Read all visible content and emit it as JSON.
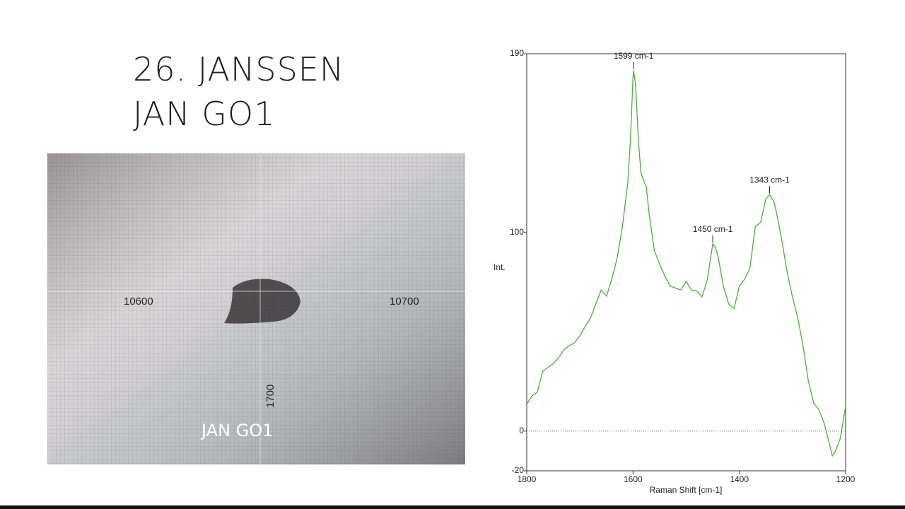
{
  "title": [
    "26. JANSSEN",
    "JAN GO1"
  ],
  "photo": {
    "labels": [
      "10600",
      "10700",
      "1700",
      "JAN GO1"
    ]
  },
  "chart_data": {
    "type": "line",
    "xlabel": "Raman Shift [cm-1]",
    "ylabel": "Int.",
    "x": [
      1800,
      1790,
      1780,
      1770,
      1760,
      1750,
      1740,
      1730,
      1720,
      1710,
      1700,
      1690,
      1680,
      1670,
      1660,
      1650,
      1640,
      1630,
      1620,
      1610,
      1605,
      1600,
      1599,
      1595,
      1590,
      1585,
      1580,
      1575,
      1570,
      1560,
      1550,
      1540,
      1530,
      1520,
      1510,
      1500,
      1490,
      1480,
      1470,
      1460,
      1455,
      1450,
      1445,
      1440,
      1430,
      1420,
      1410,
      1400,
      1390,
      1380,
      1370,
      1360,
      1350,
      1343,
      1335,
      1330,
      1320,
      1310,
      1300,
      1290,
      1280,
      1270,
      1260,
      1250,
      1240,
      1230,
      1225,
      1220,
      1210,
      1200
    ],
    "values": [
      13.5,
      17.8,
      19.6,
      30,
      32,
      34,
      37,
      41,
      43,
      44.5,
      48,
      52.7,
      57,
      64,
      71,
      68,
      76.5,
      87,
      103,
      124.6,
      146,
      178,
      181.5,
      174,
      146,
      130,
      126,
      123,
      110,
      91,
      84,
      78,
      73,
      72,
      71,
      75.4,
      71,
      70.5,
      67.6,
      76.5,
      85.4,
      94.3,
      92.5,
      88,
      73,
      64,
      61.6,
      73,
      76.5,
      82,
      103,
      105,
      117,
      119,
      115.6,
      110,
      96,
      80,
      67.6,
      57,
      42.7,
      25,
      14,
      10.7,
      3.6,
      -7,
      -12.5,
      -10.7,
      -3.6,
      12.5
    ],
    "color": "#4caf3c",
    "xlim": [
      1800,
      1200
    ],
    "xticks": [
      1800,
      1600,
      1400,
      1200
    ],
    "ylim": [
      -20,
      190
    ],
    "yticks": [
      -20,
      0,
      100,
      190
    ],
    "annotations": [
      {
        "text": "1599 cm-1",
        "x": 1599,
        "y": 181.5
      },
      {
        "text": "1450 cm-1",
        "x": 1450,
        "y": 94.3
      },
      {
        "text": "1343 cm-1",
        "x": 1343,
        "y": 119
      }
    ]
  }
}
